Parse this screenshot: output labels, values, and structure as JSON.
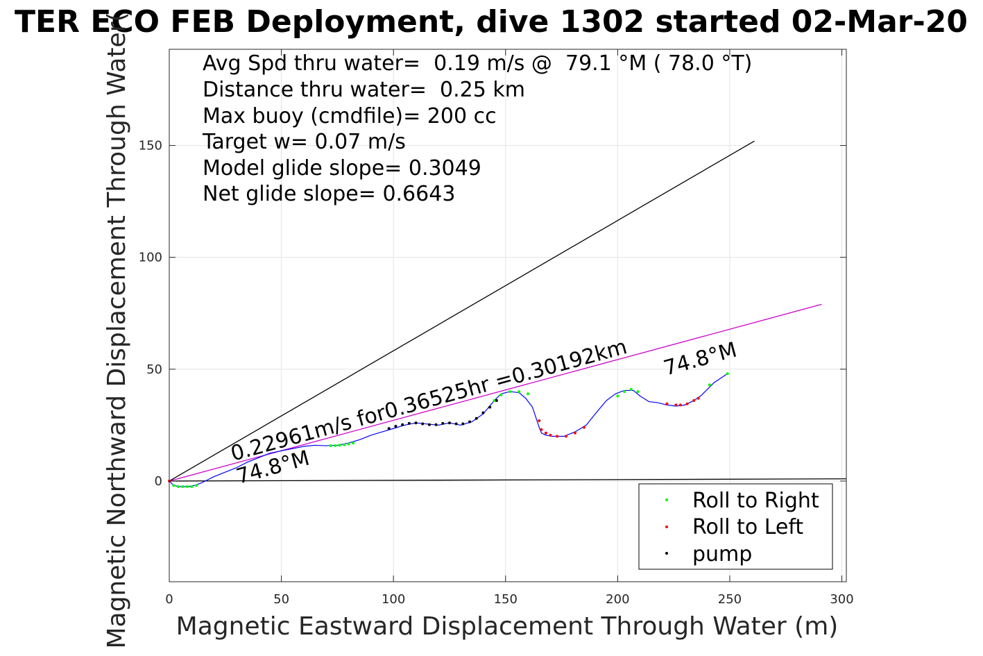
{
  "chart_data": {
    "type": "scatter",
    "title": "TER ECO FEB Deployment, dive 1302 started 02-Mar-20",
    "xlabel": "Magnetic Eastward Displacement Through Water (m)",
    "ylabel": "Magnetic Northward Displacement Through Water(",
    "xlim": [
      0,
      302
    ],
    "ylim": [
      -45,
      193
    ],
    "xticks": [
      0,
      50,
      100,
      150,
      200,
      250,
      300
    ],
    "yticks": [
      0,
      50,
      100,
      150
    ],
    "grid": true,
    "legend_position": "bottom-right",
    "info_lines": [
      "Avg Spd thru water=  0.19 m/s @  79.1 °M ( 78.0 °T)",
      "Distance thru water=  0.25 km",
      "Max buoy (cmdfile)= 200 cc",
      "Target w= 0.07 m/s",
      "Model glide slope= 0.3049",
      "Net glide slope= 0.6643"
    ],
    "annotations": {
      "current_label": "0.22961m/s for0.36525hr =0.30192km",
      "heading_near": "74.8°M",
      "heading_far": "74.8°M"
    },
    "reference_lines": [
      {
        "name": "glide cone upper",
        "color": "#000000",
        "x": [
          0,
          261
        ],
        "y": [
          0,
          152
        ]
      },
      {
        "name": "glide cone lower",
        "color": "#000000",
        "x": [
          0,
          302
        ],
        "y": [
          0,
          1
        ]
      },
      {
        "name": "heading",
        "color": "#cc00cc",
        "x": [
          0,
          291
        ],
        "y": [
          0,
          79
        ]
      }
    ],
    "track": {
      "name": "track",
      "color": "#0000ff",
      "x": [
        0,
        2,
        5,
        8,
        11,
        14,
        17,
        20,
        25,
        30,
        35,
        40,
        45,
        50,
        55,
        60,
        65,
        70,
        75,
        80,
        85,
        90,
        95,
        100,
        105,
        110,
        115,
        120,
        125,
        130,
        135,
        140,
        145,
        148,
        152,
        156,
        159,
        162,
        164,
        165,
        166,
        168,
        171,
        176,
        181,
        186,
        190,
        195,
        199,
        203,
        207,
        210,
        214,
        218,
        222,
        226,
        230,
        234,
        237,
        240,
        243,
        246,
        249
      ],
      "y": [
        0,
        -2,
        -2.5,
        -2.5,
        -2,
        -1,
        0.5,
        2,
        4,
        6,
        8.5,
        10.5,
        12.5,
        13.5,
        14.5,
        15.5,
        16,
        15.8,
        16,
        17,
        18.5,
        20.5,
        22,
        23.5,
        25,
        26,
        25.5,
        25,
        26,
        25,
        26.5,
        30,
        36,
        39,
        40,
        39.5,
        37,
        33,
        27,
        24,
        21.5,
        20.5,
        20,
        20,
        22,
        25,
        30,
        36,
        39,
        40.5,
        40.5,
        38,
        35.5,
        35,
        34,
        33.5,
        34,
        36,
        38,
        41,
        44,
        46,
        48
      ]
    },
    "series": [
      {
        "name": "Roll to Right",
        "color": "#00ff00",
        "x": [
          2,
          4,
          6,
          8,
          10,
          12,
          72,
          74,
          76,
          78,
          80,
          82,
          145,
          148,
          152,
          156,
          160,
          200,
          203,
          206,
          209,
          241,
          249
        ],
        "y": [
          -2,
          -2.5,
          -2.5,
          -2.5,
          -2.5,
          -2,
          15.8,
          15.8,
          16,
          16.2,
          16.5,
          17,
          36,
          38.5,
          40,
          40,
          39,
          38,
          40,
          41,
          40,
          43,
          48
        ]
      },
      {
        "name": "Roll to Left",
        "color": "#ff0000",
        "x": [
          0,
          165,
          166,
          168,
          170,
          173,
          177,
          181,
          185,
          222,
          226,
          228,
          231,
          234,
          236
        ],
        "y": [
          0,
          27,
          23,
          21.5,
          20.5,
          20,
          20,
          21.5,
          24,
          34.5,
          34,
          34,
          34.5,
          36,
          37
        ]
      },
      {
        "name": "pump",
        "color": "#000000",
        "x": [
          98,
          101,
          104,
          107,
          110,
          113,
          116,
          119,
          122,
          125,
          128,
          131,
          134,
          137,
          140,
          143,
          146
        ],
        "y": [
          23.5,
          24.5,
          25.2,
          25.8,
          26,
          25.6,
          25.2,
          25.2,
          25.8,
          26,
          25.6,
          25.6,
          26.5,
          28,
          30.5,
          33,
          36
        ]
      }
    ]
  }
}
